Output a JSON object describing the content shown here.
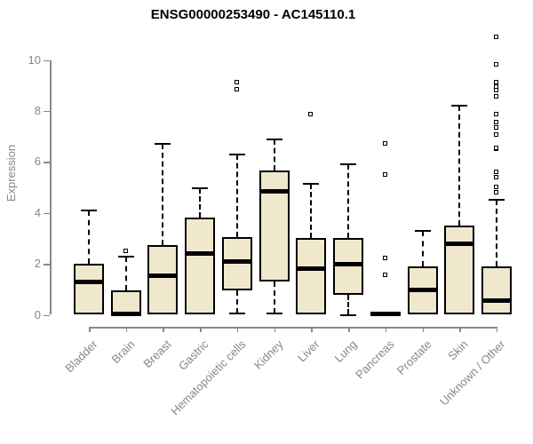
{
  "chart_data": {
    "type": "boxplot",
    "title": "ENSG00000253490 - AC145110.1",
    "xlabel": "",
    "ylabel": "Expression",
    "ylim": [
      0,
      11
    ],
    "yticks": [
      0,
      2,
      4,
      6,
      8,
      10
    ],
    "grid": false,
    "legend": "none",
    "x_tick_rotation": 45,
    "outlier_marker": "open-square",
    "colors": {
      "box_fill": "#EFE8CC",
      "box_border": "#000000",
      "median": "#000000",
      "whisker": "#000000",
      "axis": "#888888",
      "axis_text": "#878787",
      "title_text": "#000000",
      "background": "#ffffff"
    },
    "categories": [
      "Bladder",
      "Brain",
      "Breast",
      "Gastric",
      "Hematopoietic cells",
      "Kidney",
      "Liver",
      "Lung",
      "Pancreas",
      "Prostate",
      "Skin",
      "Unknown / Other"
    ],
    "series": [
      {
        "name": "Bladder",
        "whisker_low": null,
        "q1": 0,
        "median": 1.3,
        "q3": 2.0,
        "whisker_high": 4.1,
        "outliers": []
      },
      {
        "name": "Brain",
        "whisker_low": null,
        "q1": 0,
        "median": 0.05,
        "q3": 0.95,
        "whisker_high": 2.3,
        "outliers": [
          2.5
        ]
      },
      {
        "name": "Breast",
        "whisker_low": null,
        "q1": 0,
        "median": 1.55,
        "q3": 2.75,
        "whisker_high": 6.7,
        "outliers": []
      },
      {
        "name": "Gastric",
        "whisker_low": null,
        "q1": 0,
        "median": 2.4,
        "q3": 3.8,
        "whisker_high": 4.95,
        "outliers": []
      },
      {
        "name": "Hematopoietic cells",
        "whisker_low": 0.05,
        "q1": 0.95,
        "median": 2.1,
        "q3": 3.05,
        "whisker_high": 6.3,
        "outliers": [
          8.85,
          9.1
        ]
      },
      {
        "name": "Kidney",
        "whisker_low": 0.05,
        "q1": 1.3,
        "median": 4.85,
        "q3": 5.65,
        "whisker_high": 6.9,
        "outliers": []
      },
      {
        "name": "Liver",
        "whisker_low": null,
        "q1": 0,
        "median": 1.8,
        "q3": 3.0,
        "whisker_high": 5.15,
        "outliers": [
          7.85
        ]
      },
      {
        "name": "Lung",
        "whisker_low": 0,
        "q1": 0.8,
        "median": 2.0,
        "q3": 3.0,
        "whisker_high": 5.9,
        "outliers": []
      },
      {
        "name": "Pancreas",
        "whisker_low": null,
        "q1": 0,
        "median": 0.05,
        "q3": 0.12,
        "whisker_high": null,
        "outliers": [
          1.55,
          2.2,
          5.5,
          6.7
        ]
      },
      {
        "name": "Prostate",
        "whisker_low": null,
        "q1": 0,
        "median": 0.97,
        "q3": 1.9,
        "whisker_high": 3.3,
        "outliers": []
      },
      {
        "name": "Skin",
        "whisker_low": null,
        "q1": 0,
        "median": 2.8,
        "q3": 3.5,
        "whisker_high": 8.2,
        "outliers": []
      },
      {
        "name": "Unknown / Other",
        "whisker_low": null,
        "q1": 0,
        "median": 0.55,
        "q3": 1.9,
        "whisker_high": 4.5,
        "outliers": [
          4.8,
          5.0,
          5.4,
          5.6,
          6.5,
          6.55,
          7.05,
          7.35,
          7.55,
          7.85,
          8.55,
          8.8,
          8.95,
          9.1,
          9.8,
          10.9
        ]
      }
    ]
  }
}
